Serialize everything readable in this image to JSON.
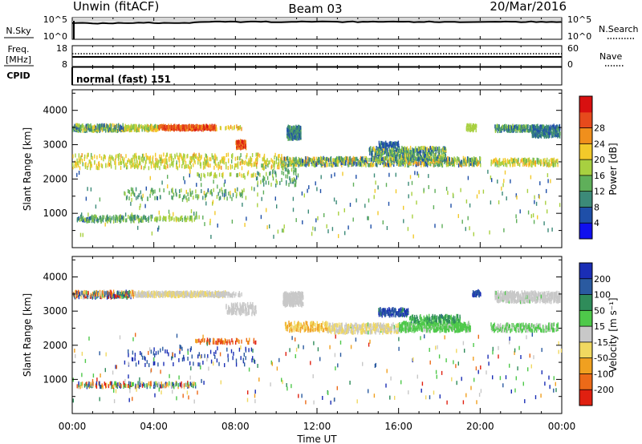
{
  "header": {
    "station": "Unwin (fitACF)",
    "beam": "Beam 03",
    "date": "20/Mar/2016"
  },
  "panels": {
    "nsky": {
      "left_label": "N.Sky",
      "right_label": "N.Search",
      "left_ticks": [
        "10^5",
        "10^0"
      ],
      "right_ticks": [
        "10^5",
        "10^0"
      ]
    },
    "freq": {
      "left_label_1": "Freq.",
      "left_label_2": "[MHz]",
      "right_label": "Nave",
      "left_ticks": [
        "18",
        "8"
      ],
      "right_ticks": [
        "60",
        "0"
      ],
      "cpid_label": "CPID"
    },
    "cpid": {
      "text": "normal (fast) 151"
    }
  },
  "time_axis": {
    "xlabel": "Time UT",
    "ticks": [
      "00:00",
      "04:00",
      "08:00",
      "12:00",
      "16:00",
      "20:00",
      "00:00"
    ]
  },
  "range_axis": {
    "ylabel": "Slant Range [km]",
    "ticks": [
      "1000",
      "2000",
      "3000",
      "4000"
    ]
  },
  "power_bar": {
    "label": "Power [dB]",
    "ticks": [
      "4",
      "8",
      "12",
      "16",
      "20",
      "24",
      "28"
    ],
    "colors": [
      "#1010ee",
      "#1f4fa8",
      "#3c8a78",
      "#5faf5a",
      "#a8d040",
      "#f2c92a",
      "#f08f1c",
      "#e64a1c",
      "#d81010"
    ]
  },
  "velocity_bar": {
    "label": "Velocity [m s⁻¹]",
    "ticks": [
      "200",
      "100",
      "50",
      "15",
      "-15",
      "-50",
      "-100",
      "-200"
    ],
    "colors": [
      "#1a2eb5",
      "#2a5aa0",
      "#2f8c5a",
      "#4ec94a",
      "#c8c8c8",
      "#f0d860",
      "#f0a020",
      "#ec6a18",
      "#e02010"
    ]
  },
  "chart_data": [
    {
      "type": "scatter",
      "title": "Power",
      "xlabel": "Time UT",
      "ylabel": "Slant Range [km]",
      "xlim": [
        "00:00",
        "24:00"
      ],
      "ylim": [
        0,
        4600
      ],
      "colorbar": "Power [dB]",
      "clim": [
        0,
        32
      ],
      "bands": [
        {
          "t": [
            0.0,
            2.5
          ],
          "r": [
            3380,
            3560
          ],
          "v": [
            4,
            20
          ],
          "d": 0.7
        },
        {
          "t": [
            2.5,
            4.2
          ],
          "r": [
            3400,
            3540
          ],
          "v": [
            12,
            22
          ],
          "d": 0.8
        },
        {
          "t": [
            4.2,
            7.0
          ],
          "r": [
            3420,
            3540
          ],
          "v": [
            22,
            30
          ],
          "d": 0.9
        },
        {
          "t": [
            7.0,
            8.3
          ],
          "r": [
            3430,
            3520
          ],
          "v": [
            16,
            24
          ],
          "d": 0.4
        },
        {
          "t": [
            8.0,
            8.5
          ],
          "r": [
            2880,
            3100
          ],
          "v": [
            22,
            30
          ],
          "d": 0.9
        },
        {
          "t": [
            10.5,
            11.2
          ],
          "r": [
            3150,
            3520
          ],
          "v": [
            4,
            12
          ],
          "d": 0.9
        },
        {
          "t": [
            10.2,
            20.0
          ],
          "r": [
            2380,
            2600
          ],
          "v": [
            4,
            24
          ],
          "d": 0.55
        },
        {
          "t": [
            14.5,
            18.3
          ],
          "r": [
            2550,
            2900
          ],
          "v": [
            4,
            20
          ],
          "d": 0.55
        },
        {
          "t": [
            15.0,
            16.0
          ],
          "r": [
            2920,
            3050
          ],
          "v": [
            4,
            8
          ],
          "d": 0.6
        },
        {
          "t": [
            20.7,
            22.5
          ],
          "r": [
            3380,
            3540
          ],
          "v": [
            4,
            16
          ],
          "d": 0.8
        },
        {
          "t": [
            22.5,
            23.9
          ],
          "r": [
            3220,
            3540
          ],
          "v": [
            4,
            12
          ],
          "d": 0.8
        },
        {
          "t": [
            0.0,
            10.3
          ],
          "r": [
            2300,
            2700
          ],
          "v": [
            14,
            22
          ],
          "d": 0.2
        },
        {
          "t": [
            20.5,
            23.8
          ],
          "r": [
            2380,
            2560
          ],
          "v": [
            12,
            22
          ],
          "d": 0.5
        },
        {
          "t": [
            0.2,
            4.0
          ],
          "r": [
            750,
            900
          ],
          "v": [
            6,
            16
          ],
          "d": 0.5
        },
        {
          "t": [
            4.0,
            6.2
          ],
          "r": [
            780,
            880
          ],
          "v": [
            12,
            18
          ],
          "d": 0.45
        },
        {
          "t": [
            2.5,
            8.5
          ],
          "r": [
            1400,
            1700
          ],
          "v": [
            8,
            16
          ],
          "d": 0.1
        },
        {
          "t": [
            9.0,
            11.0
          ],
          "r": [
            1800,
            2400
          ],
          "v": [
            8,
            16
          ],
          "d": 0.12
        },
        {
          "t": [
            6.0,
            9.0
          ],
          "r": [
            2050,
            2150
          ],
          "v": [
            14,
            20
          ],
          "d": 0.3
        },
        {
          "t": [
            0.0,
            24.0
          ],
          "r": [
            300,
            2200
          ],
          "v": [
            4,
            20
          ],
          "d": 0.01
        },
        {
          "t": [
            19.3,
            19.8
          ],
          "r": [
            3400,
            3560
          ],
          "v": [
            16,
            18
          ],
          "d": 0.6
        }
      ]
    },
    {
      "type": "scatter",
      "title": "Velocity",
      "xlabel": "Time UT",
      "ylabel": "Slant Range [km]",
      "xlim": [
        "00:00",
        "24:00"
      ],
      "ylim": [
        0,
        4600
      ],
      "colorbar": "Velocity [m s⁻¹]",
      "clim": [
        -250,
        250
      ],
      "bands": [
        {
          "t": [
            0.0,
            3.0
          ],
          "r": [
            3380,
            3560
          ],
          "v": [
            -250,
            250
          ],
          "d": 0.7
        },
        {
          "t": [
            3.0,
            7.5
          ],
          "r": [
            3420,
            3540
          ],
          "v": [
            -60,
            20
          ],
          "d": 0.8
        },
        {
          "t": [
            7.0,
            8.3
          ],
          "r": [
            3430,
            3520
          ],
          "v": [
            -15,
            15
          ],
          "d": 0.5
        },
        {
          "t": [
            10.3,
            11.3
          ],
          "r": [
            3150,
            3520
          ],
          "v": [
            -15,
            15
          ],
          "d": 0.8
        },
        {
          "t": [
            10.4,
            12.5
          ],
          "r": [
            2400,
            2650
          ],
          "v": [
            -120,
            -30
          ],
          "d": 0.4
        },
        {
          "t": [
            12.5,
            16.0
          ],
          "r": [
            2350,
            2600
          ],
          "v": [
            -80,
            30
          ],
          "d": 0.5
        },
        {
          "t": [
            16.0,
            19.5
          ],
          "r": [
            2400,
            2650
          ],
          "v": [
            20,
            80
          ],
          "d": 0.6
        },
        {
          "t": [
            15.0,
            16.5
          ],
          "r": [
            2850,
            3050
          ],
          "v": [
            120,
            240
          ],
          "d": 0.6
        },
        {
          "t": [
            16.5,
            19.0
          ],
          "r": [
            2650,
            2850
          ],
          "v": [
            40,
            140
          ],
          "d": 0.5
        },
        {
          "t": [
            19.6,
            20.0
          ],
          "r": [
            3440,
            3580
          ],
          "v": [
            150,
            230
          ],
          "d": 0.8
        },
        {
          "t": [
            20.7,
            23.9
          ],
          "r": [
            3250,
            3540
          ],
          "v": [
            -15,
            30
          ],
          "d": 0.7
        },
        {
          "t": [
            20.5,
            23.8
          ],
          "r": [
            2400,
            2600
          ],
          "v": [
            10,
            60
          ],
          "d": 0.5
        },
        {
          "t": [
            0.2,
            6.2
          ],
          "r": [
            760,
            890
          ],
          "v": [
            -250,
            250
          ],
          "d": 0.4
        },
        {
          "t": [
            6.0,
            9.0
          ],
          "r": [
            2050,
            2150
          ],
          "v": [
            -220,
            -120
          ],
          "d": 0.35
        },
        {
          "t": [
            2.5,
            9.0
          ],
          "r": [
            1400,
            1900
          ],
          "v": [
            150,
            240
          ],
          "d": 0.06
        },
        {
          "t": [
            0.0,
            24.0
          ],
          "r": [
            300,
            2300
          ],
          "v": [
            -250,
            250
          ],
          "d": 0.01
        },
        {
          "t": [
            7.5,
            9.0
          ],
          "r": [
            2900,
            3200
          ],
          "v": [
            -20,
            20
          ],
          "d": 0.4
        }
      ]
    }
  ]
}
